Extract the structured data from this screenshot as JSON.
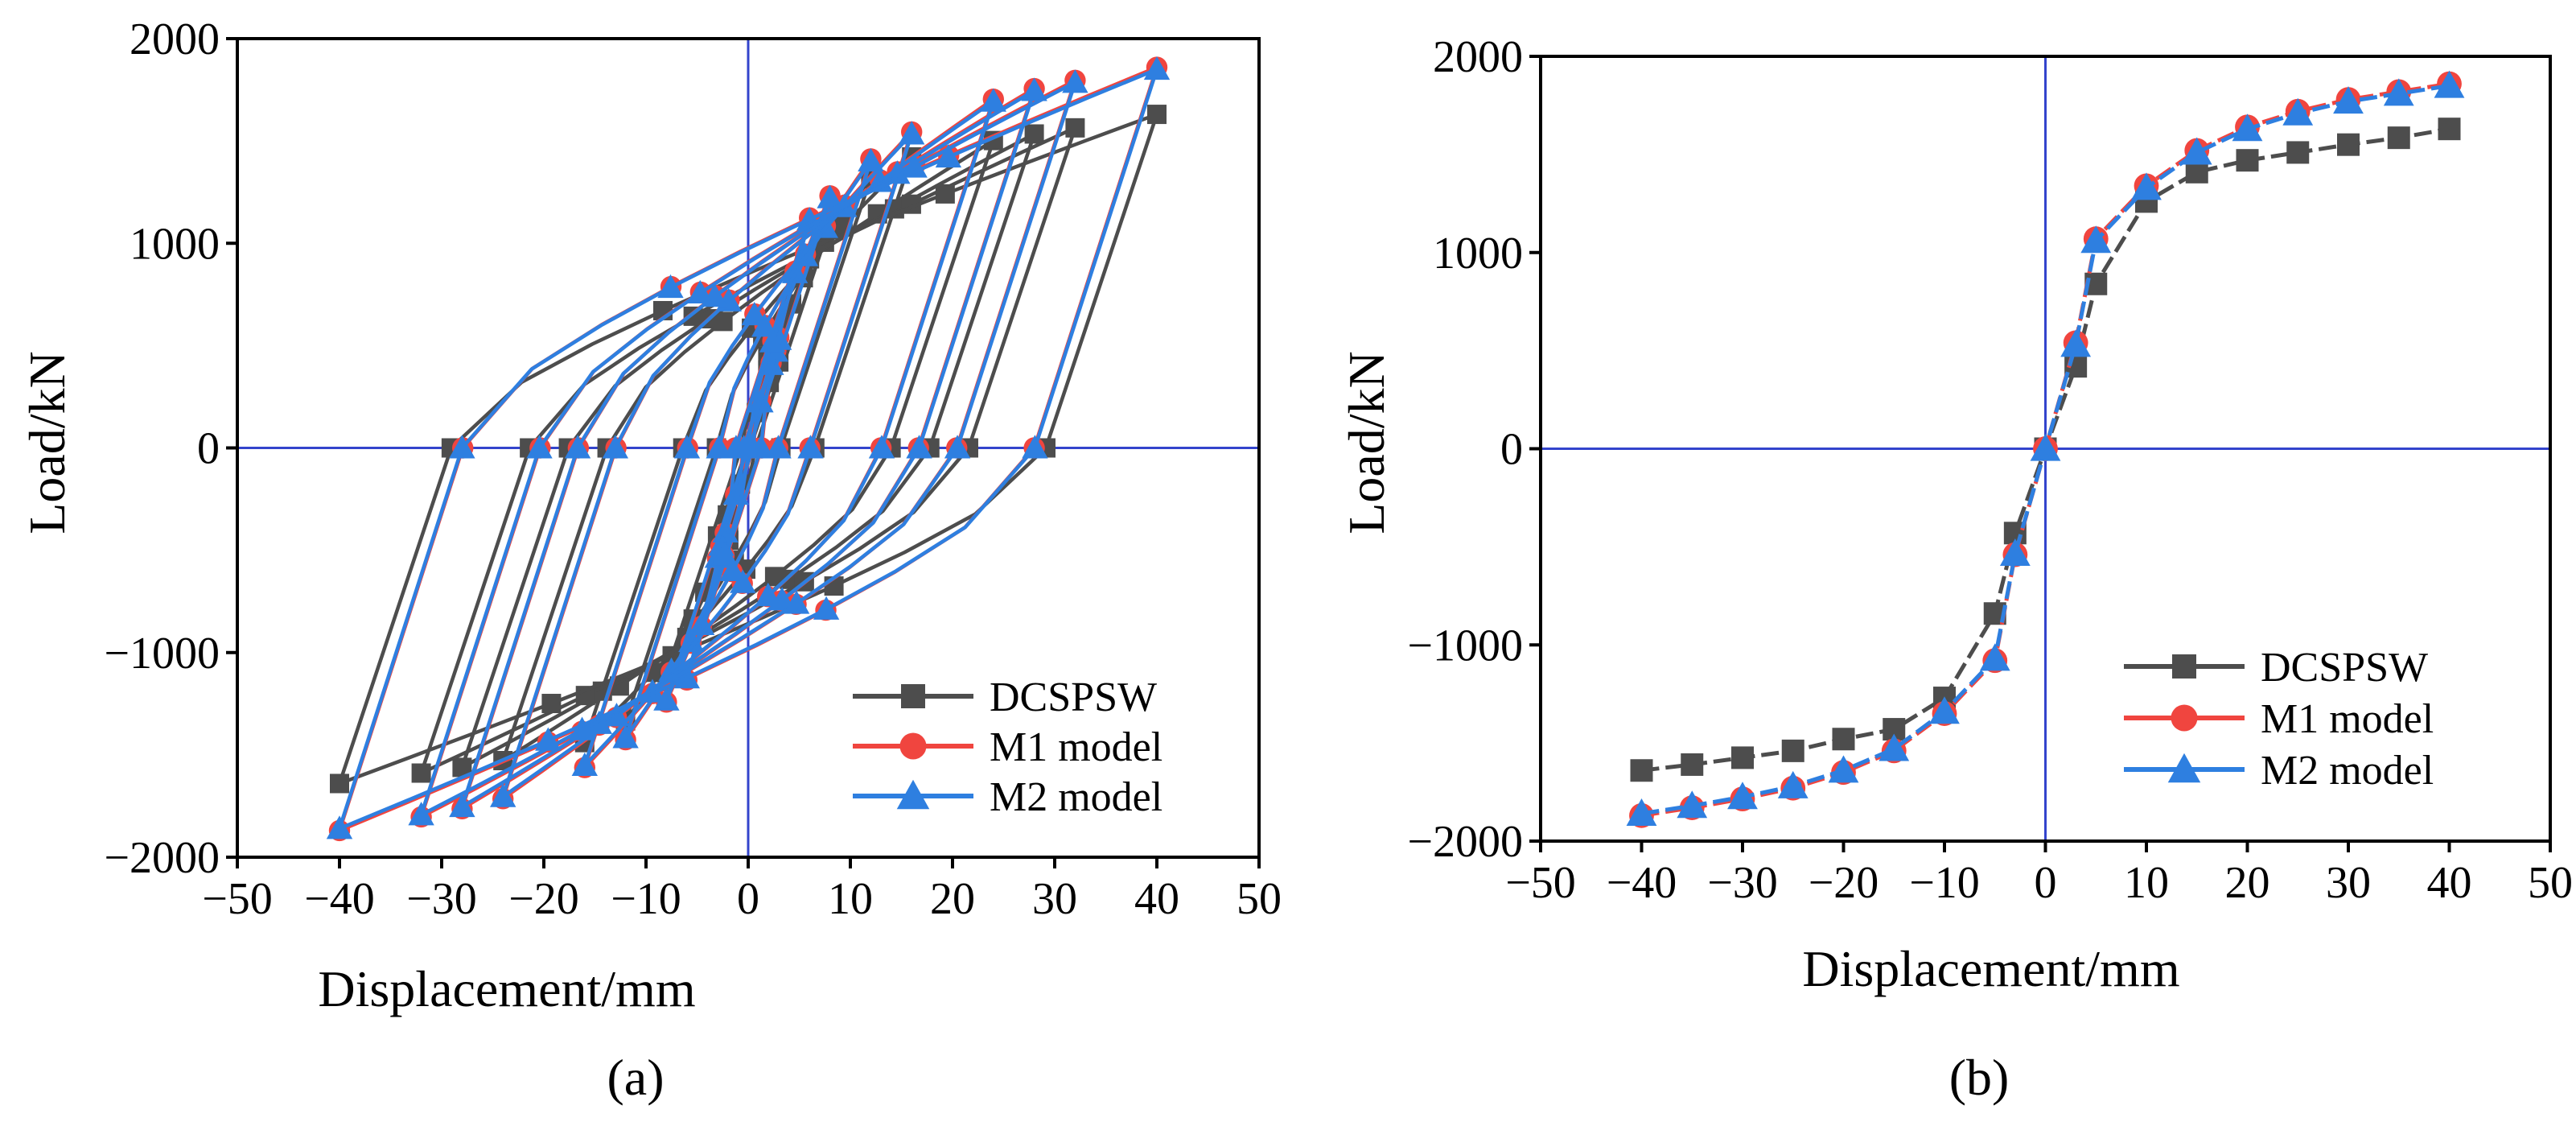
{
  "figure": {
    "panel_a_label": "(a)",
    "panel_b_label": "(b)"
  },
  "colors": {
    "DCSPSW": "#4d4d4d",
    "M1 model": "#f0453f",
    "M2 model": "#2e7fe0",
    "zero_lines": "#3344cc"
  },
  "chart_data": [
    {
      "type": "line",
      "panel": "(a)",
      "title": "",
      "xlabel": "Displacement/mm",
      "ylabel": "Load/kN",
      "xlim": [
        -50,
        50
      ],
      "ylim": [
        -2000,
        2000
      ],
      "x_ticks": [
        -50,
        -40,
        -30,
        -20,
        -10,
        0,
        10,
        20,
        30,
        40,
        50
      ],
      "y_ticks": [
        -2000,
        -1000,
        0,
        1000,
        2000
      ],
      "x_tick_labels": [
        "−50",
        "−40",
        "−30",
        "−20",
        "−10",
        "0",
        "10",
        "20",
        "30",
        "40",
        "50"
      ],
      "y_tick_labels": [
        "−2000",
        "−1000",
        "0",
        "1000",
        "2000"
      ],
      "legend_position": "bottom-right",
      "description": "Cyclic hysteresis loops",
      "loop_amplitudes_mm": [
        3,
        6,
        8,
        12,
        16,
        24,
        28,
        32,
        40
      ],
      "series": [
        {
          "name": "DCSPSW",
          "marker": "square",
          "envelope_disp": [
            -40,
            -35,
            -30,
            -25,
            -20,
            -15,
            -10,
            -5,
            -3,
            0,
            3,
            5,
            10,
            15,
            20,
            25,
            30,
            35,
            40
          ],
          "envelope_load": [
            -1640,
            -1610,
            -1575,
            -1540,
            -1480,
            -1430,
            -1270,
            -840,
            -430,
            0,
            420,
            840,
            1260,
            1410,
            1470,
            1510,
            1550,
            1585,
            1630
          ],
          "unloading_stiffness": 150,
          "reload_amp": 0.45
        },
        {
          "name": "M1 model",
          "marker": "circle",
          "envelope_disp": [
            -40,
            -35,
            -30,
            -25,
            -20,
            -15,
            -10,
            -5,
            -3,
            0,
            3,
            5,
            10,
            15,
            20,
            25,
            30,
            35,
            40
          ],
          "envelope_load": [
            -1870,
            -1830,
            -1785,
            -1730,
            -1650,
            -1540,
            -1350,
            -1080,
            -540,
            0,
            540,
            1070,
            1340,
            1520,
            1640,
            1720,
            1780,
            1820,
            1860
          ],
          "unloading_stiffness": 155,
          "reload_amp": 0.5
        },
        {
          "name": "M2 model",
          "marker": "triangle",
          "envelope_disp": [
            -40,
            -35,
            -30,
            -25,
            -20,
            -15,
            -10,
            -5,
            -3,
            0,
            3,
            5,
            10,
            15,
            20,
            25,
            30,
            35,
            40
          ],
          "envelope_load": [
            -1860,
            -1820,
            -1775,
            -1720,
            -1640,
            -1530,
            -1340,
            -1070,
            -535,
            0,
            530,
            1060,
            1330,
            1510,
            1630,
            1710,
            1770,
            1810,
            1850
          ],
          "unloading_stiffness": 155,
          "reload_amp": 0.5
        }
      ]
    },
    {
      "type": "line",
      "panel": "(b)",
      "title": "",
      "xlabel": "Displacement/mm",
      "ylabel": "Load/kN",
      "xlim": [
        -50,
        50
      ],
      "ylim": [
        -2000,
        2000
      ],
      "x_ticks": [
        -50,
        -40,
        -30,
        -20,
        -10,
        0,
        10,
        20,
        30,
        40,
        50
      ],
      "y_ticks": [
        -2000,
        -1000,
        0,
        1000,
        2000
      ],
      "x_tick_labels": [
        "−50",
        "−40",
        "−30",
        "−20",
        "−10",
        "0",
        "10",
        "20",
        "30",
        "40",
        "50"
      ],
      "y_tick_labels": [
        "−2000",
        "−1000",
        "0",
        "1000",
        "2000"
      ],
      "legend_position": "bottom-right",
      "description": "Skeleton curves",
      "series": [
        {
          "name": "DCSPSW",
          "marker": "square",
          "x": [
            -40,
            -35,
            -30,
            -25,
            -20,
            -15,
            -10,
            -5,
            -3,
            0,
            3,
            5,
            10,
            15,
            20,
            25,
            30,
            35,
            40
          ],
          "y": [
            -1640,
            -1610,
            -1575,
            -1540,
            -1480,
            -1430,
            -1270,
            -840,
            -430,
            0,
            420,
            840,
            1260,
            1410,
            1470,
            1510,
            1550,
            1585,
            1630
          ]
        },
        {
          "name": "M1 model",
          "marker": "circle",
          "x": [
            -40,
            -35,
            -30,
            -25,
            -20,
            -15,
            -10,
            -5,
            -3,
            0,
            3,
            5,
            10,
            15,
            20,
            25,
            30,
            35,
            40
          ],
          "y": [
            -1870,
            -1830,
            -1785,
            -1730,
            -1650,
            -1540,
            -1350,
            -1080,
            -540,
            0,
            540,
            1070,
            1340,
            1520,
            1640,
            1720,
            1780,
            1820,
            1860
          ]
        },
        {
          "name": "M2 model",
          "marker": "triangle",
          "x": [
            -40,
            -35,
            -30,
            -25,
            -20,
            -15,
            -10,
            -5,
            -3,
            0,
            3,
            5,
            10,
            15,
            20,
            25,
            30,
            35,
            40
          ],
          "y": [
            -1860,
            -1820,
            -1775,
            -1720,
            -1640,
            -1530,
            -1340,
            -1070,
            -535,
            0,
            530,
            1060,
            1330,
            1510,
            1630,
            1710,
            1770,
            1810,
            1850
          ]
        }
      ]
    }
  ]
}
